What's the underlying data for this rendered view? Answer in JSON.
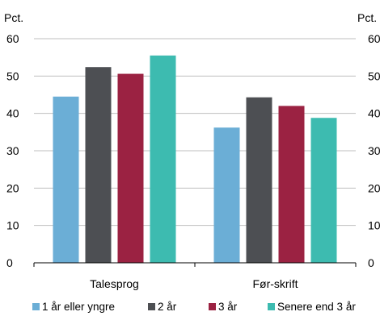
{
  "chart_data": {
    "type": "bar",
    "categories": [
      "Talesprog",
      "Før-skrift"
    ],
    "series": [
      {
        "name": "1 år eller yngre",
        "color": "#6baed6",
        "values": [
          44.5,
          36.2
        ]
      },
      {
        "name": "2 år",
        "color": "#4d4f53",
        "values": [
          52.4,
          44.3
        ]
      },
      {
        "name": "3 år",
        "color": "#9b2242",
        "values": [
          50.6,
          42.0
        ]
      },
      {
        "name": "Senere end 3 år",
        "color": "#3dbbb0",
        "values": [
          55.5,
          38.8
        ]
      }
    ],
    "unit_left": "Pct.",
    "unit_right": "Pct.",
    "ylim": [
      0,
      60
    ],
    "yticks": [
      "0",
      "10",
      "20",
      "30",
      "40",
      "50",
      "60"
    ],
    "grid": true,
    "legend_position": "bottom"
  }
}
